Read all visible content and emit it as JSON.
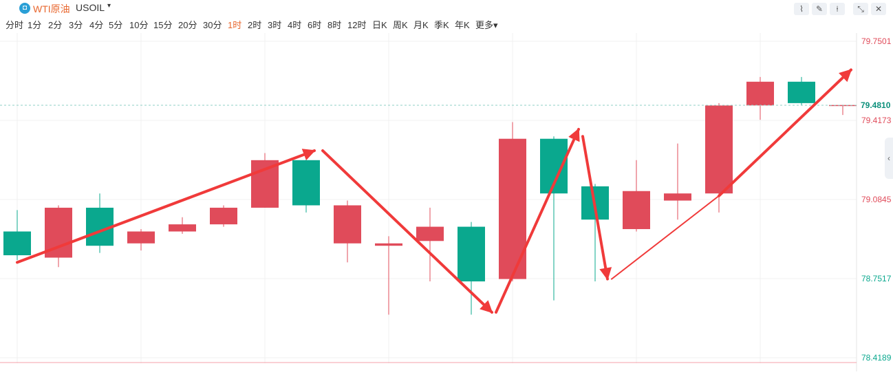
{
  "header": {
    "logo_glyph": "◘",
    "instrument_name": "WTI原油",
    "instrument_code": "USOIL",
    "code_caret": "▾",
    "tools": [
      {
        "name": "indicator-icon",
        "glyph": "⌇"
      },
      {
        "name": "draw-icon",
        "glyph": "✎"
      },
      {
        "name": "candle-type-icon",
        "glyph": "⍿"
      },
      {
        "name": "shrink-icon",
        "glyph": "⤡"
      },
      {
        "name": "close-icon",
        "glyph": "✕"
      }
    ]
  },
  "timeframes": {
    "items": [
      "分时",
      "1分",
      "2分",
      "3分",
      "4分",
      "5分",
      "10分",
      "15分",
      "20分",
      "30分",
      "1时",
      "2时",
      "3时",
      "4时",
      "6时",
      "8时",
      "12时",
      "日K",
      "周K",
      "月K",
      "季K",
      "年K",
      "更多▾"
    ],
    "active_index": 10
  },
  "side_tab": {
    "glyph": "‹"
  },
  "colors": {
    "up": "#0aa88e",
    "down": "#e04b5a",
    "arrow": "#f03a3a",
    "grid": "#f0f0f0",
    "last_line": "#8ecfc4",
    "low_line": "#f5a0a8"
  },
  "chart_data": {
    "type": "candlestick",
    "y_ticks": [
      {
        "value": 79.7501,
        "label": "79.7501",
        "color": "#e04b5a"
      },
      {
        "value": 79.4173,
        "label": "79.4173",
        "color": "#e04b5a"
      },
      {
        "value": 79.0845,
        "label": "79.0845",
        "color": "#e04b5a"
      },
      {
        "value": 78.7517,
        "label": "78.7517",
        "color": "#0aa88e"
      },
      {
        "value": 78.4189,
        "label": "78.4189",
        "color": "#0aa88e"
      }
    ],
    "last_price": {
      "value": 79.481,
      "label": "79.4810"
    },
    "candles": [
      {
        "o": 78.85,
        "c": 78.95,
        "h": 79.04,
        "l": 78.83
      },
      {
        "o": 79.05,
        "c": 78.84,
        "h": 79.06,
        "l": 78.8
      },
      {
        "o": 78.89,
        "c": 79.05,
        "h": 79.11,
        "l": 78.86
      },
      {
        "o": 78.95,
        "c": 78.9,
        "h": 78.96,
        "l": 78.87
      },
      {
        "o": 78.98,
        "c": 78.95,
        "h": 79.01,
        "l": 78.94
      },
      {
        "o": 79.05,
        "c": 78.98,
        "h": 79.06,
        "l": 78.97
      },
      {
        "o": 79.25,
        "c": 79.05,
        "h": 79.28,
        "l": 79.05
      },
      {
        "o": 79.06,
        "c": 79.25,
        "h": 79.27,
        "l": 79.03
      },
      {
        "o": 79.06,
        "c": 78.9,
        "h": 79.08,
        "l": 78.82
      },
      {
        "o": 78.9,
        "c": 78.89,
        "h": 78.93,
        "l": 78.6
      },
      {
        "o": 78.97,
        "c": 78.91,
        "h": 79.05,
        "l": 78.74
      },
      {
        "o": 78.74,
        "c": 78.97,
        "h": 78.99,
        "l": 78.6
      },
      {
        "o": 79.34,
        "c": 78.75,
        "h": 79.41,
        "l": 78.74
      },
      {
        "o": 79.11,
        "c": 79.34,
        "h": 79.35,
        "l": 78.66
      },
      {
        "o": 79.0,
        "c": 79.14,
        "h": 79.15,
        "l": 78.74
      },
      {
        "o": 79.12,
        "c": 78.96,
        "h": 79.25,
        "l": 78.95
      },
      {
        "o": 79.11,
        "c": 79.08,
        "h": 79.32,
        "l": 79.0
      },
      {
        "o": 79.48,
        "c": 79.11,
        "h": 79.49,
        "l": 79.03
      },
      {
        "o": 79.58,
        "c": 79.48,
        "h": 79.6,
        "l": 79.42
      },
      {
        "o": 79.49,
        "c": 79.58,
        "h": 79.6,
        "l": 79.48
      },
      {
        "o": 79.482,
        "c": 79.481,
        "h": 79.483,
        "l": 79.44
      }
    ],
    "annotations": [
      {
        "type": "arrow",
        "from": [
          0,
          78.82
        ],
        "to": [
          7.2,
          79.29
        ],
        "thick": true
      },
      {
        "type": "arrow",
        "from": [
          7.4,
          79.29
        ],
        "to": [
          11.5,
          78.61
        ],
        "thick": true
      },
      {
        "type": "arrow",
        "from": [
          11.6,
          78.61
        ],
        "to": [
          13.6,
          79.38
        ],
        "thick": true
      },
      {
        "type": "arrow",
        "from": [
          13.7,
          79.35
        ],
        "to": [
          14.3,
          78.75
        ],
        "thick": true
      },
      {
        "type": "line",
        "from": [
          14.4,
          78.75
        ],
        "to": [
          17.0,
          79.1
        ]
      },
      {
        "type": "arrow",
        "from": [
          17.0,
          79.1
        ],
        "to": [
          20.2,
          79.63
        ],
        "thick": true
      }
    ]
  }
}
